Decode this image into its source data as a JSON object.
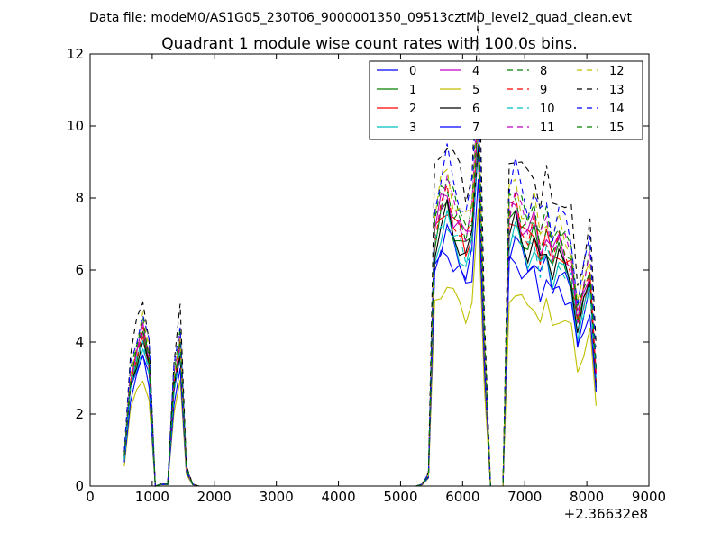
{
  "chart_data": {
    "type": "line",
    "suptitle": "Data file: modeM0/AS1G05_230T06_9000001350_09513cztM0_level2_quad_clean.evt",
    "title": "Quadrant 1 module wise count rates with 100.0s bins.",
    "xlabel": "",
    "ylabel": "",
    "x_offset_label": "+2.36632e8",
    "xlim": [
      0,
      9000
    ],
    "ylim": [
      0,
      12
    ],
    "x_ticks": [
      0,
      1000,
      2000,
      3000,
      4000,
      5000,
      6000,
      7000,
      8000,
      9000
    ],
    "y_ticks": [
      0,
      2,
      4,
      6,
      8,
      10,
      12
    ],
    "grid": false,
    "legend_placement": "top-right",
    "legend_columns": 4,
    "series_colors": [
      "#0000ff",
      "#008000",
      "#ff0000",
      "#00bfbf",
      "#bf00bf",
      "#bfbf00",
      "#000000",
      "#0000ff",
      "#008000",
      "#ff0000",
      "#00bfbf",
      "#bf00bf",
      "#bfbf00",
      "#000000",
      "#0000ff",
      "#008000"
    ],
    "series_styles": [
      "solid",
      "solid",
      "solid",
      "solid",
      "solid",
      "solid",
      "solid",
      "solid",
      "dashed",
      "dashed",
      "dashed",
      "dashed",
      "dashed",
      "dashed",
      "dashed",
      "dashed"
    ],
    "series_names": [
      "0",
      "1",
      "2",
      "3",
      "4",
      "5",
      "6",
      "7",
      "8",
      "9",
      "10",
      "11",
      "12",
      "13",
      "14",
      "15"
    ],
    "x": [
      550,
      650,
      750,
      850,
      950,
      1050,
      1150,
      1250,
      1350,
      1450,
      1550,
      1650,
      1750,
      1850,
      1950,
      2050,
      2150,
      2250,
      2350,
      2450,
      2550,
      2650,
      2750,
      2850,
      2950,
      3050,
      3150,
      3250,
      3350,
      3450,
      3550,
      3650,
      3750,
      3850,
      3950,
      4050,
      4150,
      4250,
      4350,
      4450,
      4550,
      4650,
      4750,
      4850,
      4950,
      5050,
      5150,
      5250,
      5350,
      5450,
      5550,
      5650,
      5750,
      5850,
      5950,
      6050,
      6150,
      6250,
      6350,
      6450,
      6550,
      6650,
      6750,
      6850,
      6950,
      7050,
      7150,
      7250,
      7350,
      7450,
      7550,
      7650,
      7750,
      7850,
      7950,
      8050,
      8150
    ],
    "base_profile": [
      0.8,
      2.9,
      3.6,
      4.2,
      3.4,
      0.0,
      0.05,
      0.05,
      2.8,
      3.9,
      0.45,
      0.05,
      0.0,
      0.0,
      0.0,
      0.0,
      0.0,
      0.0,
      0.0,
      0.0,
      0.0,
      0.0,
      0.0,
      0.0,
      0.0,
      0.0,
      0.0,
      0.0,
      0.0,
      0.0,
      0.0,
      0.0,
      0.0,
      0.0,
      0.0,
      0.0,
      0.0,
      0.0,
      0.0,
      0.0,
      0.0,
      0.0,
      0.0,
      0.0,
      0.0,
      0.0,
      0.0,
      0.0,
      0.05,
      0.3,
      6.9,
      7.5,
      7.9,
      7.3,
      7.0,
      6.6,
      7.1,
      10.2,
      3.8,
      0.0,
      0.0,
      0.0,
      7.3,
      7.6,
      7.1,
      6.8,
      7.1,
      6.4,
      6.9,
      6.2,
      6.6,
      6.3,
      6.0,
      4.5,
      5.2,
      5.9,
      3.0
    ],
    "series_scales": [
      0.9,
      0.98,
      1.0,
      0.93,
      1.03,
      0.72,
      0.96,
      0.84,
      1.08,
      1.02,
      0.95,
      1.06,
      1.1,
      1.24,
      1.15,
      1.06
    ]
  }
}
